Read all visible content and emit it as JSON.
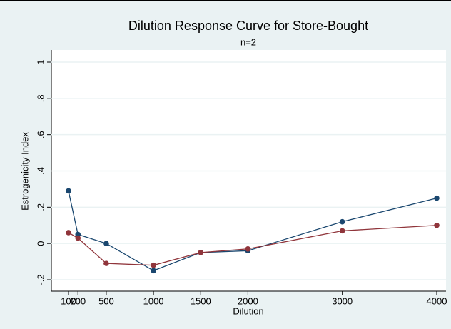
{
  "chart_data": {
    "type": "line",
    "title": "Dilution Response Curve for Store-Bought",
    "subtitle": "n=2",
    "x_label": "Dilution",
    "y_label": "Estrogenicity Index",
    "x": [
      100,
      200,
      500,
      1000,
      1500,
      2000,
      3000,
      4000
    ],
    "series": [
      {
        "color": "#1a476f",
        "values": [
          0.29,
          0.05,
          0.0,
          -0.15,
          -0.05,
          -0.04,
          0.12,
          0.25
        ]
      },
      {
        "color": "#90353b",
        "values": [
          0.06,
          0.03,
          -0.11,
          -0.12,
          -0.05,
          -0.03,
          0.07,
          0.1
        ]
      }
    ],
    "xlim": [
      100,
      4000
    ],
    "xticks": [
      100,
      200,
      500,
      1000,
      1500,
      2000,
      3000,
      4000
    ],
    "ylim": [
      -0.2,
      1
    ],
    "yticks": [
      {
        "value": -0.2,
        "label": "-.2"
      },
      0,
      {
        "value": 0.2,
        "label": ".2"
      },
      {
        "value": 0.4,
        "label": ".4"
      },
      {
        "value": 0.6,
        "label": ".6"
      },
      {
        "value": 0.8,
        "label": ".8"
      },
      1
    ],
    "grid": true
  }
}
